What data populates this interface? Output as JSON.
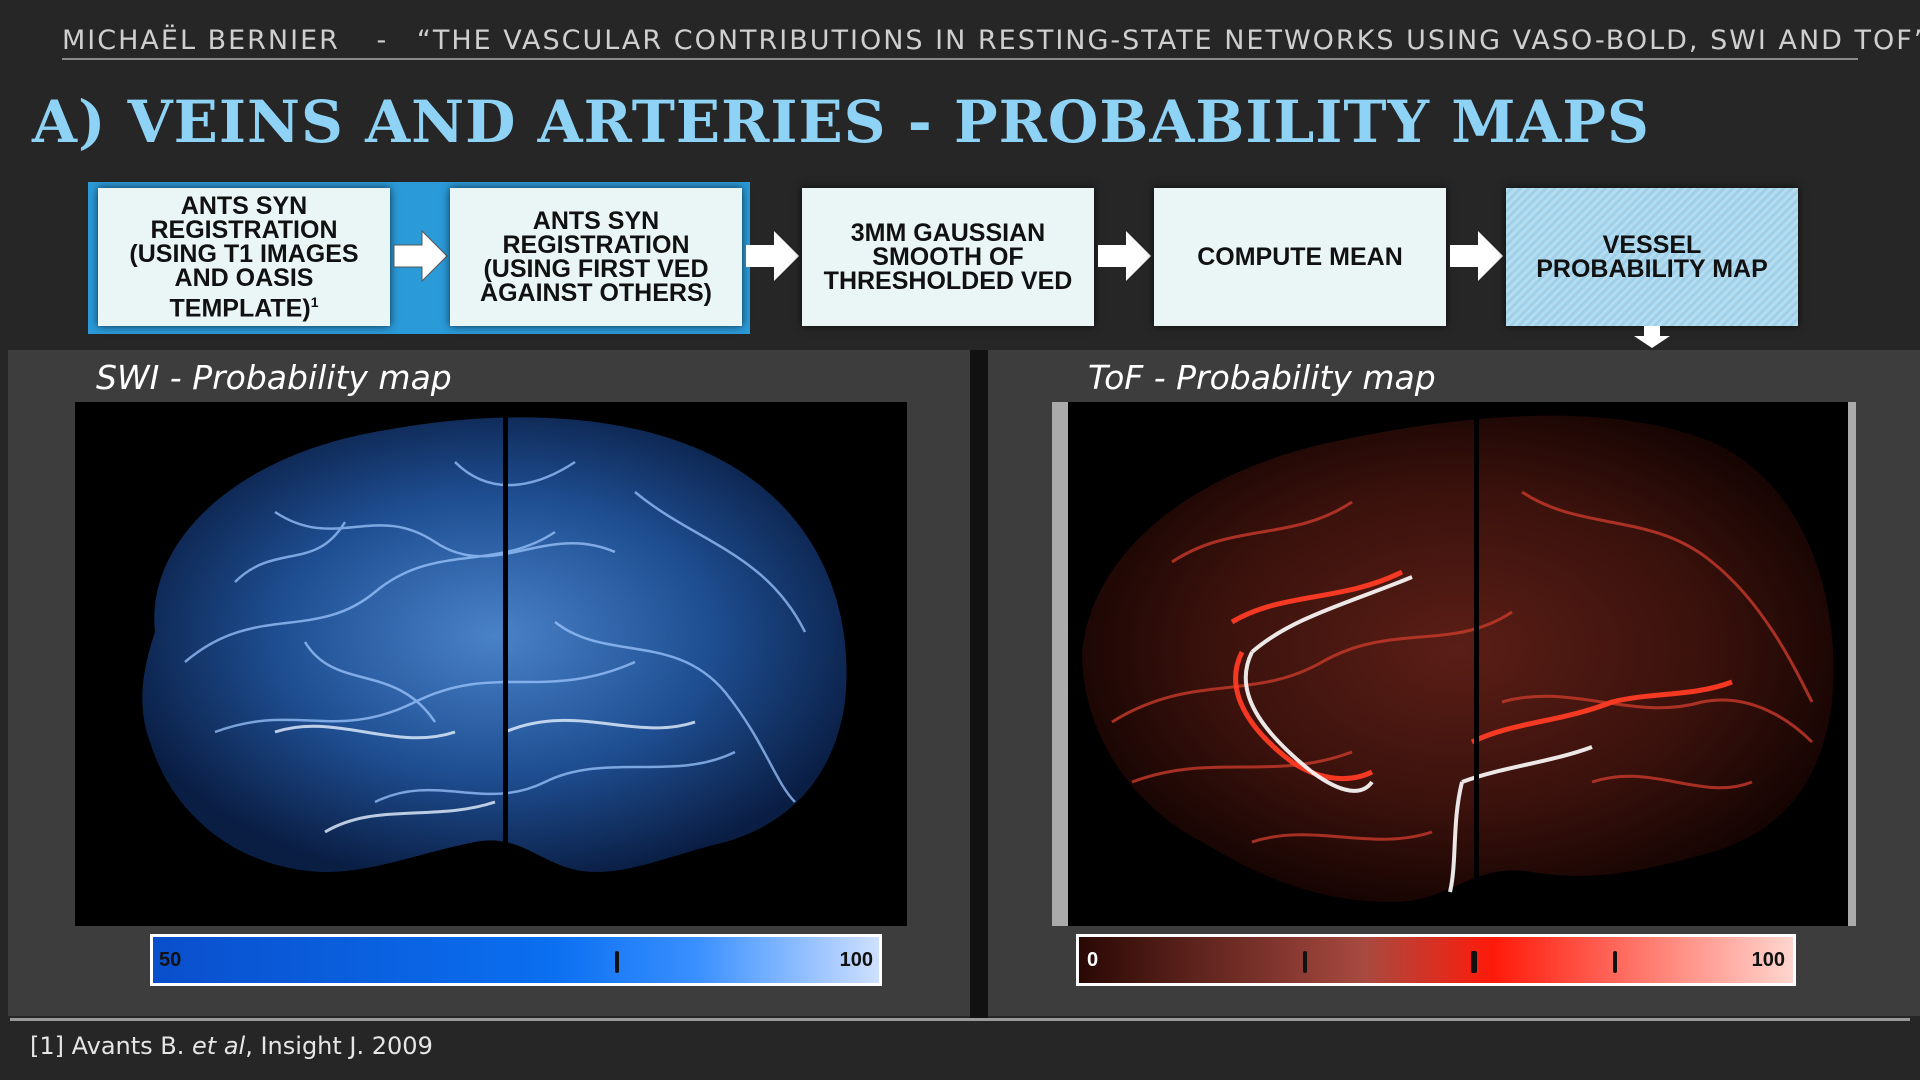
{
  "header": {
    "author": "MICHAËL BERNIER",
    "separator": "-",
    "talk_title": "“THE VASCULAR CONTRIBUTIONS IN RESTING-STATE NETWORKS USING VASO-BOLD, SWI AND TOF”"
  },
  "slide_title": "A) VEINS AND ARTERIES - PROBABILITY MAPS",
  "pipeline": {
    "steps": [
      {
        "line1": "ANTS SYN",
        "line2": "REGISTRATION",
        "line3": "(USING T1 IMAGES",
        "line4": "AND OASIS",
        "line5": "TEMPLATE)",
        "footnote_mark": "1"
      },
      {
        "line1": "ANTS SYN",
        "line2": "REGISTRATION",
        "line3": "(USING FIRST VED",
        "line4": "AGAINST OTHERS)"
      },
      {
        "line1": "3MM GAUSSIAN",
        "line2": "SMOOTH OF",
        "line3": "THRESHOLDED VED"
      },
      {
        "line1": "COMPUTE MEAN"
      },
      {
        "line1": "VESSEL",
        "line2": "PROBABILITY MAP"
      }
    ],
    "highlighted_steps": 2
  },
  "panels": {
    "swi": {
      "title": "SWI - Probability map",
      "colorbar_min": "50",
      "colorbar_max": "100",
      "colorbar_colors": [
        "#0a4fcc",
        "#0a6ff0",
        "#3a90ff",
        "#cfe0ff"
      ]
    },
    "tof": {
      "title": "ToF - Probability map",
      "colorbar_min": "0",
      "colorbar_max": "100",
      "colorbar_colors": [
        "#2a0804",
        "#a84a40",
        "#ff1a0a",
        "#ffd6cf"
      ]
    }
  },
  "footnote": {
    "prefix": "[1] Avants B. ",
    "italic": "et al",
    "suffix": ", Insight J. 2009"
  }
}
